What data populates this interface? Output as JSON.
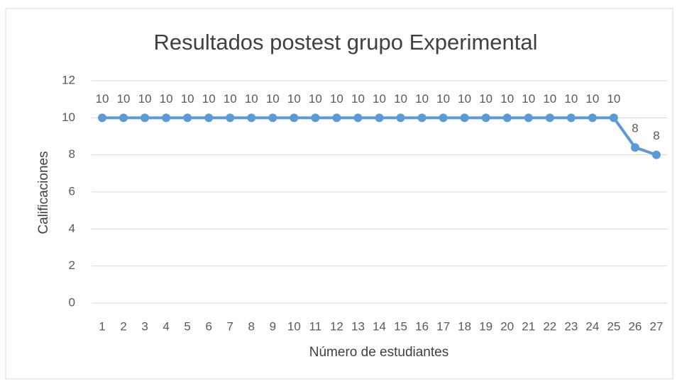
{
  "chart_data": {
    "type": "line",
    "title": "Resultados postest grupo Experimental",
    "x_label": "Número de estudiantes",
    "y_label": "Calificaciones",
    "categories": [
      "1",
      "2",
      "3",
      "4",
      "5",
      "6",
      "7",
      "8",
      "9",
      "10",
      "11",
      "12",
      "13",
      "14",
      "15",
      "16",
      "17",
      "18",
      "19",
      "20",
      "21",
      "22",
      "23",
      "24",
      "25",
      "26",
      "27"
    ],
    "series": [
      {
        "name": "Calificaciones",
        "color": "#5b9bd5",
        "values": [
          10,
          10,
          10,
          10,
          10,
          10,
          10,
          10,
          10,
          10,
          10,
          10,
          10,
          10,
          10,
          10,
          10,
          10,
          10,
          10,
          10,
          10,
          10,
          10,
          10,
          8.4,
          8
        ],
        "value_labels": [
          "10",
          "10",
          "10",
          "10",
          "10",
          "10",
          "10",
          "10",
          "10",
          "10",
          "10",
          "10",
          "10",
          "10",
          "10",
          "10",
          "10",
          "10",
          "10",
          "10",
          "10",
          "10",
          "10",
          "10",
          "10",
          "8",
          "8"
        ]
      }
    ],
    "ylim": [
      0,
      12
    ],
    "yticks": [
      0,
      2,
      4,
      6,
      8,
      10,
      12
    ],
    "grid": true
  }
}
